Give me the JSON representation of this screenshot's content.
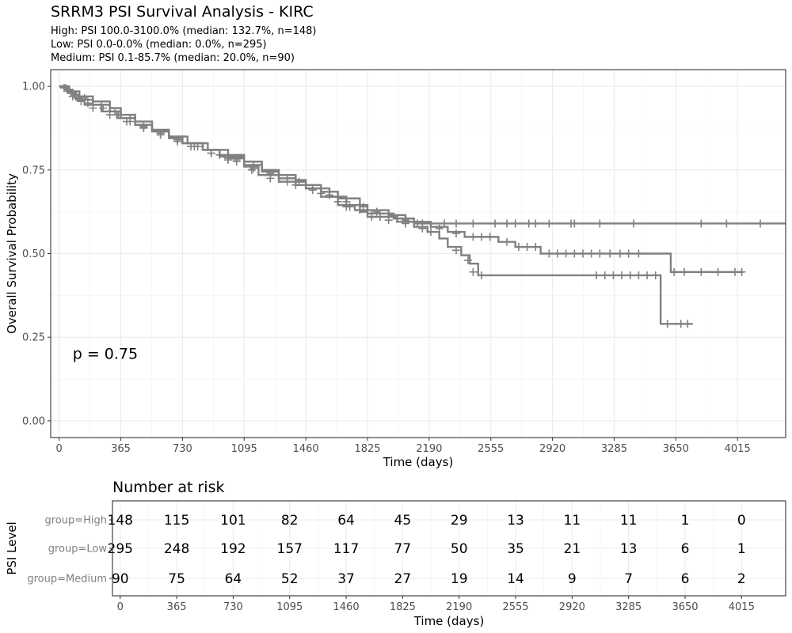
{
  "chart_data": {
    "type": "line",
    "title": "SRRM3 PSI Survival Analysis - KIRC",
    "subtitle_lines": [
      "High: PSI 100.0-3100.0% (median: 132.7%, n=148)",
      "Low: PSI 0.0-0.0% (median: 0.0%, n=295)",
      "Medium: PSI 0.1-85.7% (median: 20.0%, n=90)"
    ],
    "xlabel": "Time (days)",
    "ylabel": "Overall Survival Probability",
    "xlim": [
      -50,
      4300
    ],
    "ylim": [
      -0.05,
      1.05
    ],
    "xticks": [
      0,
      365,
      730,
      1095,
      1460,
      1825,
      2190,
      2555,
      2920,
      3285,
      3650,
      4015
    ],
    "yticks": [
      0.0,
      0.25,
      0.5,
      0.75,
      1.0
    ],
    "ytick_labels": [
      "0.00",
      "0.25",
      "0.50",
      "0.75",
      "1.00"
    ],
    "grid": true,
    "line_color": "#808080",
    "annotation": "p = 0.75",
    "series": [
      {
        "name": "High",
        "steps": [
          [
            0,
            1.0
          ],
          [
            60,
            0.985
          ],
          [
            120,
            0.97
          ],
          [
            200,
            0.955
          ],
          [
            300,
            0.935
          ],
          [
            365,
            0.915
          ],
          [
            450,
            0.895
          ],
          [
            550,
            0.87
          ],
          [
            650,
            0.85
          ],
          [
            730,
            0.83
          ],
          [
            850,
            0.81
          ],
          [
            950,
            0.79
          ],
          [
            1095,
            0.765
          ],
          [
            1200,
            0.745
          ],
          [
            1300,
            0.725
          ],
          [
            1400,
            0.705
          ],
          [
            1460,
            0.695
          ],
          [
            1550,
            0.67
          ],
          [
            1650,
            0.645
          ],
          [
            1780,
            0.625
          ],
          [
            1825,
            0.61
          ],
          [
            2000,
            0.595
          ],
          [
            2100,
            0.58
          ],
          [
            2180,
            0.565
          ],
          [
            2250,
            0.545
          ],
          [
            2300,
            0.52
          ],
          [
            2380,
            0.495
          ],
          [
            2430,
            0.47
          ],
          [
            2480,
            0.435
          ],
          [
            3550,
            0.435
          ],
          [
            3560,
            0.29
          ],
          [
            3750,
            0.29
          ]
        ],
        "censored": [
          [
            40,
            0.995
          ],
          [
            90,
            0.975
          ],
          [
            150,
            0.965
          ],
          [
            250,
            0.945
          ],
          [
            330,
            0.925
          ],
          [
            420,
            0.905
          ],
          [
            500,
            0.88
          ],
          [
            600,
            0.86
          ],
          [
            700,
            0.84
          ],
          [
            800,
            0.82
          ],
          [
            900,
            0.8
          ],
          [
            1000,
            0.78
          ],
          [
            1150,
            0.755
          ],
          [
            1250,
            0.735
          ],
          [
            1350,
            0.715
          ],
          [
            1500,
            0.69
          ],
          [
            1700,
            0.64
          ],
          [
            1850,
            0.61
          ],
          [
            1950,
            0.6
          ],
          [
            2050,
            0.59
          ],
          [
            2150,
            0.575
          ],
          [
            2200,
            0.565
          ],
          [
            2350,
            0.51
          ],
          [
            2420,
            0.48
          ],
          [
            2450,
            0.445
          ],
          [
            2500,
            0.435
          ],
          [
            3180,
            0.435
          ],
          [
            3230,
            0.435
          ],
          [
            3280,
            0.435
          ],
          [
            3330,
            0.435
          ],
          [
            3380,
            0.435
          ],
          [
            3430,
            0.435
          ],
          [
            3480,
            0.435
          ],
          [
            3530,
            0.435
          ],
          [
            3600,
            0.29
          ],
          [
            3680,
            0.29
          ],
          [
            3720,
            0.29
          ]
        ]
      },
      {
        "name": "Low",
        "steps": [
          [
            0,
            1.0
          ],
          [
            40,
            0.99
          ],
          [
            80,
            0.975
          ],
          [
            120,
            0.96
          ],
          [
            200,
            0.945
          ],
          [
            300,
            0.925
          ],
          [
            365,
            0.905
          ],
          [
            450,
            0.885
          ],
          [
            550,
            0.865
          ],
          [
            650,
            0.845
          ],
          [
            730,
            0.83
          ],
          [
            850,
            0.81
          ],
          [
            950,
            0.795
          ],
          [
            1095,
            0.775
          ],
          [
            1200,
            0.75
          ],
          [
            1300,
            0.735
          ],
          [
            1400,
            0.72
          ],
          [
            1460,
            0.705
          ],
          [
            1550,
            0.685
          ],
          [
            1650,
            0.665
          ],
          [
            1780,
            0.645
          ],
          [
            1825,
            0.63
          ],
          [
            1950,
            0.615
          ],
          [
            2050,
            0.595
          ],
          [
            2200,
            0.58
          ],
          [
            2300,
            0.565
          ],
          [
            2400,
            0.55
          ],
          [
            2600,
            0.535
          ],
          [
            2700,
            0.52
          ],
          [
            2850,
            0.5
          ],
          [
            3600,
            0.5
          ],
          [
            3620,
            0.445
          ],
          [
            4050,
            0.445
          ]
        ],
        "censored": [
          [
            30,
            0.995
          ],
          [
            70,
            0.98
          ],
          [
            110,
            0.965
          ],
          [
            170,
            0.95
          ],
          [
            260,
            0.935
          ],
          [
            340,
            0.915
          ],
          [
            420,
            0.895
          ],
          [
            500,
            0.875
          ],
          [
            600,
            0.855
          ],
          [
            700,
            0.835
          ],
          [
            780,
            0.82
          ],
          [
            900,
            0.8
          ],
          [
            1000,
            0.785
          ],
          [
            1050,
            0.78
          ],
          [
            1150,
            0.76
          ],
          [
            1250,
            0.74
          ],
          [
            1350,
            0.725
          ],
          [
            1420,
            0.715
          ],
          [
            1500,
            0.695
          ],
          [
            1600,
            0.675
          ],
          [
            1700,
            0.655
          ],
          [
            1800,
            0.64
          ],
          [
            1880,
            0.625
          ],
          [
            2000,
            0.605
          ],
          [
            2120,
            0.59
          ],
          [
            2250,
            0.575
          ],
          [
            2350,
            0.56
          ],
          [
            2450,
            0.55
          ],
          [
            2500,
            0.55
          ],
          [
            2550,
            0.55
          ],
          [
            2650,
            0.535
          ],
          [
            2720,
            0.52
          ],
          [
            2770,
            0.52
          ],
          [
            2820,
            0.52
          ],
          [
            2900,
            0.5
          ],
          [
            2950,
            0.5
          ],
          [
            3000,
            0.5
          ],
          [
            3050,
            0.5
          ],
          [
            3100,
            0.5
          ],
          [
            3150,
            0.5
          ],
          [
            3200,
            0.5
          ],
          [
            3260,
            0.5
          ],
          [
            3320,
            0.5
          ],
          [
            3370,
            0.5
          ],
          [
            3430,
            0.5
          ],
          [
            3640,
            0.445
          ],
          [
            3700,
            0.445
          ],
          [
            3800,
            0.445
          ],
          [
            3900,
            0.445
          ],
          [
            4000,
            0.445
          ],
          [
            4040,
            0.445
          ]
        ]
      },
      {
        "name": "Medium",
        "steps": [
          [
            0,
            1.0
          ],
          [
            50,
            0.98
          ],
          [
            100,
            0.96
          ],
          [
            150,
            0.945
          ],
          [
            250,
            0.925
          ],
          [
            350,
            0.905
          ],
          [
            450,
            0.885
          ],
          [
            550,
            0.87
          ],
          [
            650,
            0.85
          ],
          [
            760,
            0.83
          ],
          [
            880,
            0.81
          ],
          [
            1000,
            0.785
          ],
          [
            1095,
            0.76
          ],
          [
            1180,
            0.735
          ],
          [
            1300,
            0.715
          ],
          [
            1460,
            0.695
          ],
          [
            1600,
            0.67
          ],
          [
            1700,
            0.645
          ],
          [
            1750,
            0.63
          ],
          [
            1825,
            0.62
          ],
          [
            1980,
            0.605
          ],
          [
            2100,
            0.59
          ],
          [
            2500,
            0.59
          ],
          [
            4300,
            0.59
          ]
        ],
        "censored": [
          [
            30,
            0.995
          ],
          [
            80,
            0.97
          ],
          [
            130,
            0.955
          ],
          [
            200,
            0.935
          ],
          [
            300,
            0.915
          ],
          [
            400,
            0.895
          ],
          [
            500,
            0.878
          ],
          [
            600,
            0.86
          ],
          [
            700,
            0.84
          ],
          [
            820,
            0.82
          ],
          [
            950,
            0.795
          ],
          [
            1050,
            0.775
          ],
          [
            1140,
            0.75
          ],
          [
            1250,
            0.725
          ],
          [
            1400,
            0.705
          ],
          [
            1550,
            0.68
          ],
          [
            1650,
            0.655
          ],
          [
            1720,
            0.64
          ],
          [
            1780,
            0.63
          ],
          [
            1850,
            0.62
          ],
          [
            1900,
            0.61
          ],
          [
            1950,
            0.61
          ],
          [
            2050,
            0.6
          ],
          [
            2150,
            0.59
          ],
          [
            2280,
            0.59
          ],
          [
            2350,
            0.59
          ],
          [
            2450,
            0.59
          ],
          [
            2580,
            0.59
          ],
          [
            2650,
            0.59
          ],
          [
            2700,
            0.59
          ],
          [
            2780,
            0.59
          ],
          [
            2820,
            0.59
          ],
          [
            2900,
            0.59
          ],
          [
            3030,
            0.59
          ],
          [
            3050,
            0.59
          ],
          [
            3200,
            0.59
          ],
          [
            3400,
            0.59
          ],
          [
            3800,
            0.59
          ],
          [
            3950,
            0.59
          ],
          [
            4150,
            0.59
          ]
        ]
      }
    ]
  },
  "risk_table": {
    "title": "Number at risk",
    "ylabel": "PSI Level",
    "xlabel": "Time (days)",
    "times": [
      0,
      365,
      730,
      1095,
      1460,
      1825,
      2190,
      2555,
      2920,
      3285,
      3650,
      4015
    ],
    "rows": [
      {
        "label": "group=High",
        "values": [
          148,
          115,
          101,
          82,
          64,
          45,
          29,
          13,
          11,
          11,
          1,
          0
        ]
      },
      {
        "label": "group=Low",
        "values": [
          295,
          248,
          192,
          157,
          117,
          77,
          50,
          35,
          21,
          13,
          6,
          1
        ]
      },
      {
        "label": "group=Medium",
        "values": [
          90,
          75,
          64,
          52,
          37,
          27,
          19,
          14,
          9,
          7,
          6,
          2
        ]
      }
    ]
  }
}
